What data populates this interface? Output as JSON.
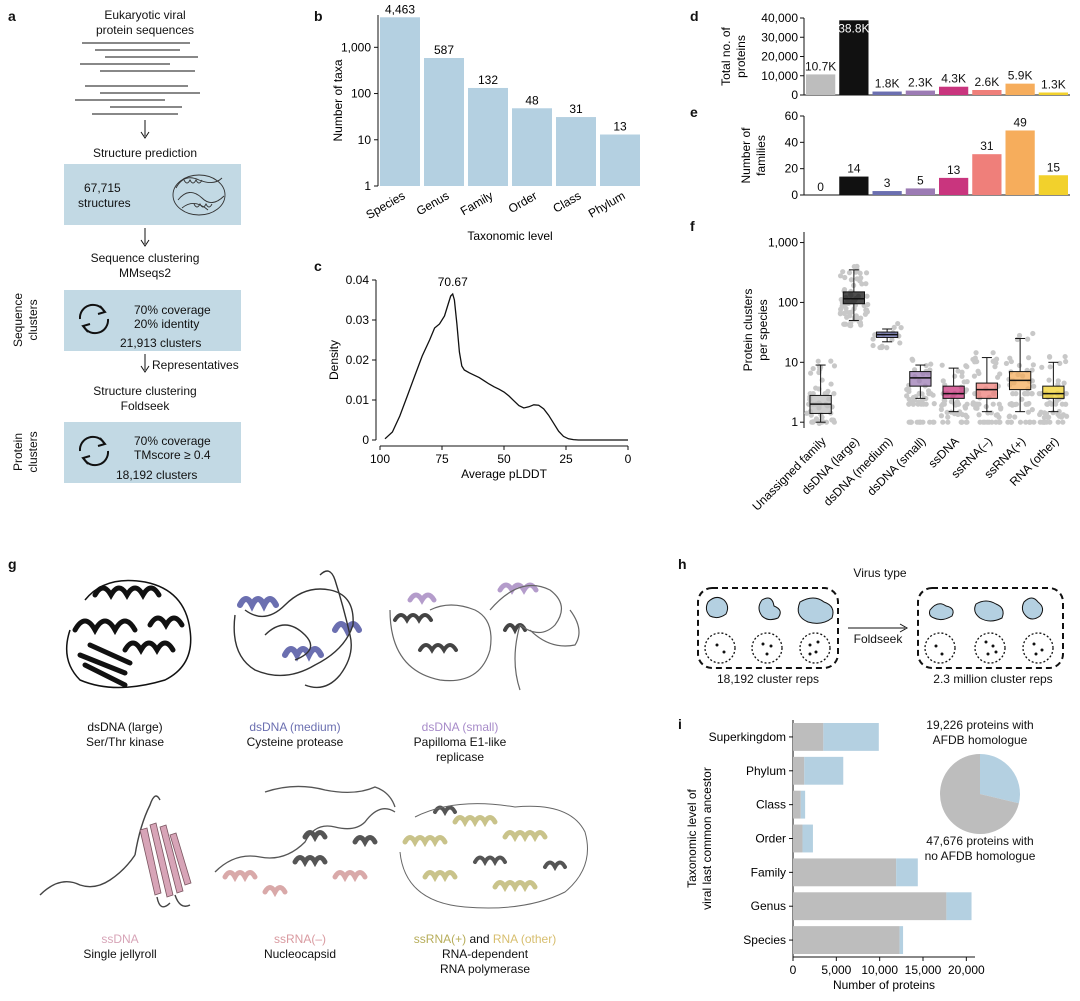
{
  "colors": {
    "bar_blue": "#b4d0e1",
    "box_blue": "#c2d9e4",
    "gray": "#bdbdbd",
    "black": "#111111",
    "dsDNA_medium": "#6b6fb0",
    "dsDNA_small": "#9c7bb4",
    "ssDNA": "#c9357e",
    "ssRNA_minus": "#ef7f7a",
    "ssRNA_plus": "#f6ad5c",
    "RNA_other": "#f2d12c"
  },
  "panel_a": {
    "label": "a",
    "title_line1": "Eukaryotic viral",
    "title_line2": "protein sequences",
    "step1": "Structure prediction",
    "structures_count": "67,715",
    "structures_label": "structures",
    "step2_line1": "Sequence clustering",
    "step2_line2": "MMseqs2",
    "seq_side_line1": "Sequence",
    "seq_side_line2": "clusters",
    "seq_cov": "70% coverage",
    "seq_id": "20% identity",
    "seq_clusters": "21,913 clusters",
    "representatives": "Representatives",
    "step3_line1": "Structure clustering",
    "step3_line2": "Foldseek",
    "prot_side_line1": "Protein",
    "prot_side_line2": "clusters",
    "prot_cov": "70% coverage",
    "prot_tm": "TMscore ≥ 0.4",
    "prot_clusters": "18,192 clusters"
  },
  "panel_b": {
    "label": "b"
  },
  "panel_c": {
    "label": "c"
  },
  "panel_d": {
    "label": "d"
  },
  "panel_e": {
    "label": "e"
  },
  "panel_f": {
    "label": "f"
  },
  "panel_g": {
    "label": "g",
    "items": [
      {
        "colored": "dsDNA (large)",
        "line2": "Ser/Thr kinase"
      },
      {
        "colored": "dsDNA (medium)",
        "line2": "Cysteine protease"
      },
      {
        "colored": "dsDNA (small)",
        "line2": "Papilloma E1-like",
        "line3": "replicase"
      },
      {
        "colored": "ssDNA",
        "line2": "Single jellyroll"
      },
      {
        "colored": "ssRNA(–)",
        "line2": "Nucleocapsid"
      },
      {
        "colored": "ssRNA(+)",
        "mid": " and ",
        "colored2": "RNA (other)",
        "line2": "RNA-dependent",
        "line3": "RNA polymerase"
      }
    ]
  },
  "panel_h": {
    "label": "h",
    "title": "Virus type",
    "arrow_label": "Foldseek",
    "left_caption": "18,192 cluster reps",
    "right_caption": "2.3 million cluster reps"
  },
  "panel_i": {
    "label": "i",
    "pie_top_line1": "19,226 proteins with",
    "pie_top_line2": "AFDB homologue",
    "pie_bottom_line1": "47,676 proteins with",
    "pie_bottom_line2": "no AFDB homologue"
  },
  "chart_data": [
    {
      "id": "b",
      "type": "bar",
      "categories": [
        "Species",
        "Genus",
        "Family",
        "Order",
        "Class",
        "Phylum"
      ],
      "values": [
        4463,
        587,
        132,
        48,
        31,
        13
      ],
      "value_labels": [
        "4,463",
        "587",
        "132",
        "48",
        "31",
        "13"
      ],
      "ylabel": "Number of taxa",
      "xlabel": "Taxonomic level",
      "yscale": "log",
      "yticks": [
        "1",
        "10",
        "100",
        "1,000"
      ],
      "ylim": [
        1,
        5000
      ]
    },
    {
      "id": "c",
      "type": "line",
      "ylabel": "Density",
      "xlabel": "Average pLDDT",
      "xticks": [
        "100",
        "75",
        "50",
        "25",
        "0"
      ],
      "yticks": [
        "0",
        "0.01",
        "0.02",
        "0.03",
        "0.04"
      ],
      "xlim": [
        100,
        0
      ],
      "ylim": [
        0,
        0.04
      ],
      "peak_label": "70.67",
      "x": [
        98,
        95,
        92,
        89,
        86,
        83,
        80,
        78,
        76,
        74,
        72.5,
        71.5,
        70.67,
        70,
        69,
        68,
        67,
        66,
        64,
        62,
        60,
        58,
        56,
        54,
        52,
        50,
        48,
        46,
        44,
        42,
        40,
        38,
        36,
        34,
        32,
        30,
        28,
        26,
        24,
        22,
        20,
        17,
        12,
        0
      ],
      "y": [
        0.0003,
        0.002,
        0.006,
        0.011,
        0.016,
        0.021,
        0.025,
        0.028,
        0.029,
        0.031,
        0.034,
        0.036,
        0.0365,
        0.035,
        0.029,
        0.022,
        0.0185,
        0.0175,
        0.0168,
        0.0162,
        0.0156,
        0.0148,
        0.014,
        0.0133,
        0.0127,
        0.012,
        0.011,
        0.0098,
        0.0086,
        0.008,
        0.0083,
        0.0088,
        0.0087,
        0.0078,
        0.0062,
        0.0042,
        0.0022,
        0.0009,
        0.0003,
        0.0001,
        0.0,
        0.0,
        0.0,
        0.0
      ]
    },
    {
      "id": "d",
      "type": "bar",
      "ylabel_line1": "Total no. of",
      "ylabel_line2": "proteins",
      "yticks": [
        "0",
        "10,000",
        "20,000",
        "30,000",
        "40,000"
      ],
      "ylim": [
        0,
        40000
      ],
      "values": [
        10700,
        38800,
        1800,
        2300,
        4300,
        2600,
        5900,
        1300
      ],
      "value_labels": [
        "10.7K",
        "38.8K",
        "1.8K",
        "2.3K",
        "4.3K",
        "2.6K",
        "5.9K",
        "1.3K"
      ]
    },
    {
      "id": "e",
      "type": "bar",
      "ylabel_line1": "Number of",
      "ylabel_line2": "families",
      "yticks": [
        "0",
        "20",
        "40",
        "60"
      ],
      "ylim": [
        0,
        60
      ],
      "values": [
        0,
        14,
        3,
        5,
        13,
        31,
        49,
        15
      ],
      "value_labels": [
        "0",
        "14",
        "3",
        "5",
        "13",
        "31",
        "49",
        "15"
      ]
    },
    {
      "id": "f",
      "type": "scatter",
      "ylabel_line1": "Protein clusters",
      "ylabel_line2": "per species",
      "yscale": "log",
      "yticks": [
        "1",
        "10",
        "100",
        "1,000"
      ],
      "ylim": [
        0.8,
        1500
      ],
      "categories": [
        "Unassigned family",
        "dsDNA (large)",
        "dsDNA (medium)",
        "dsDNA (small)",
        "ssDNA",
        "ssRNA(–)",
        "ssRNA(+)",
        "RNA (other)"
      ],
      "boxes": [
        {
          "q1": 1.4,
          "median": 2,
          "q3": 2.8,
          "whislo": 1,
          "whishi": 9
        },
        {
          "q1": 95,
          "median": 115,
          "q3": 150,
          "whislo": 50,
          "whishi": 350
        },
        {
          "q1": 26,
          "median": 29,
          "q3": 32,
          "whislo": 22,
          "whishi": 36
        },
        {
          "q1": 4,
          "median": 5.5,
          "q3": 7,
          "whislo": 2.5,
          "whishi": 9
        },
        {
          "q1": 2.5,
          "median": 3,
          "q3": 4,
          "whislo": 1.5,
          "whishi": 8
        },
        {
          "q1": 2.5,
          "median": 3.5,
          "q3": 4.5,
          "whislo": 1.5,
          "whishi": 12
        },
        {
          "q1": 3.5,
          "median": 5,
          "q3": 7,
          "whislo": 1.5,
          "whishi": 25
        },
        {
          "q1": 2.5,
          "median": 3,
          "q3": 4,
          "whislo": 1.5,
          "whishi": 10
        }
      ]
    },
    {
      "id": "i",
      "type": "bar",
      "orientation": "horizontal",
      "ylabel_line1": "Taxonomic level of",
      "ylabel_line2": "viral last common ancestor",
      "xlabel": "Number of proteins",
      "xticks": [
        "0",
        "5,000",
        "10,000",
        "15,000",
        "20,000"
      ],
      "xlim": [
        0,
        21000
      ],
      "categories": [
        "Superkingdom",
        "Phylum",
        "Class",
        "Order",
        "Family",
        "Genus",
        "Species"
      ],
      "series": [
        {
          "values": [
            3500,
            1300,
            900,
            1100,
            11900,
            17700,
            12300
          ]
        },
        {
          "values": [
            6400,
            4500,
            500,
            1200,
            2500,
            2900,
            400
          ]
        }
      ],
      "pie": [
        19226,
        47676
      ]
    }
  ]
}
